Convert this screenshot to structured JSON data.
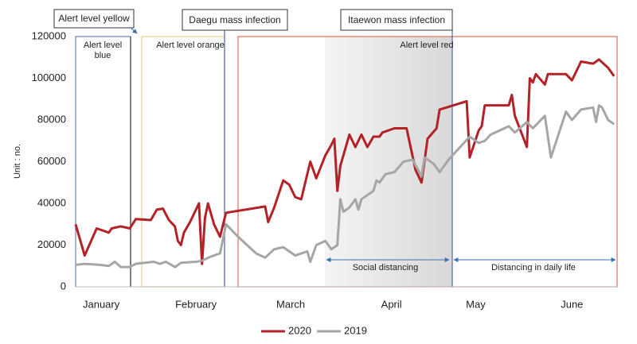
{
  "chart_data": {
    "type": "line",
    "ylabel": "Unit : no.",
    "xlim": [
      1,
      181
    ],
    "ylim": [
      0,
      120000
    ],
    "yticks": [
      0,
      20000,
      40000,
      60000,
      80000,
      100000,
      120000
    ],
    "xticks": [
      {
        "value": 9.5,
        "label": "January"
      },
      {
        "value": 41,
        "label": "February"
      },
      {
        "value": 72.5,
        "label": "March"
      },
      {
        "value": 106,
        "label": "April"
      },
      {
        "value": 134,
        "label": "May"
      },
      {
        "value": 166,
        "label": "June"
      }
    ],
    "grid": false,
    "legend": "bottom",
    "annotations": {
      "alert_yellow": "Alert level yellow",
      "daegu": "Daegu mass infection",
      "itaewon": "Itaewon mass infection",
      "alert_blue": [
        "Alert level",
        "blue"
      ],
      "alert_orange": "Alert level orange",
      "alert_red": "Alert level red",
      "social": "Social distancing",
      "daily": "Distancing in daily life"
    },
    "series": [
      {
        "name": "2020",
        "color": "#b22226",
        "x": [
          1,
          4,
          8,
          12,
          13,
          16,
          19,
          21,
          26,
          28,
          30,
          32,
          34,
          35,
          36,
          37,
          39,
          41,
          42,
          43,
          44,
          45,
          47,
          49,
          51,
          64,
          65,
          67,
          70,
          72,
          74,
          76,
          79,
          81,
          84,
          86,
          87,
          88,
          89,
          92,
          94,
          96,
          98,
          100,
          102,
          103,
          107,
          111,
          114,
          116,
          118,
          121,
          122,
          131,
          132,
          135,
          136,
          137,
          145,
          146,
          147,
          151,
          152,
          153,
          154,
          157,
          158,
          164,
          166,
          169,
          173,
          175,
          178,
          180
        ],
        "values": [
          30000,
          15000,
          28000,
          26000,
          28000,
          29000,
          28000,
          32500,
          32000,
          37000,
          37500,
          32000,
          29000,
          22000,
          20000,
          26000,
          31000,
          37000,
          40000,
          11000,
          33000,
          40000,
          30000,
          24000,
          35500,
          38500,
          31000,
          38000,
          51000,
          49000,
          43000,
          42000,
          60000,
          52000,
          63000,
          68000,
          71000,
          46000,
          58000,
          73000,
          67000,
          73000,
          67000,
          72000,
          72000,
          74000,
          76000,
          76000,
          56000,
          50000,
          71000,
          76000,
          85000,
          89000,
          62000,
          75000,
          77000,
          87000,
          87000,
          92000,
          82000,
          67000,
          100000,
          98000,
          102000,
          97000,
          102000,
          102000,
          99000,
          108000,
          107000,
          109000,
          105000,
          101000
        ]
      },
      {
        "name": "2019",
        "color": "#a6a6a6",
        "x": [
          1,
          4,
          9,
          12,
          14,
          16,
          19,
          21,
          24,
          27,
          29,
          31,
          34,
          36,
          41,
          43,
          46,
          49,
          51,
          55,
          61,
          64,
          67,
          70,
          74,
          78,
          79,
          81,
          84,
          86,
          88,
          89,
          90,
          92,
          94,
          95,
          96,
          99,
          100,
          101,
          102,
          104,
          107,
          110,
          113,
          116,
          117,
          120,
          122,
          125,
          132,
          135,
          137,
          139,
          145,
          147,
          151,
          153,
          157,
          159,
          164,
          166,
          169,
          173,
          174,
          175,
          176,
          178,
          180
        ],
        "values": [
          10500,
          11000,
          10500,
          10000,
          12000,
          9500,
          9500,
          11000,
          11500,
          12000,
          11000,
          12000,
          9500,
          11500,
          12000,
          12500,
          14500,
          16000,
          30000,
          24000,
          16000,
          14000,
          18000,
          19000,
          15000,
          17000,
          12000,
          20000,
          22000,
          18000,
          20000,
          42000,
          36000,
          38000,
          42000,
          37000,
          42000,
          45000,
          46000,
          51000,
          50000,
          54000,
          55000,
          60000,
          61000,
          53000,
          62000,
          59000,
          55000,
          61000,
          72000,
          69000,
          70000,
          73000,
          77000,
          74000,
          79000,
          76000,
          82000,
          62000,
          84000,
          80000,
          85000,
          86000,
          79000,
          87000,
          86000,
          80000,
          78000
        ]
      }
    ]
  }
}
